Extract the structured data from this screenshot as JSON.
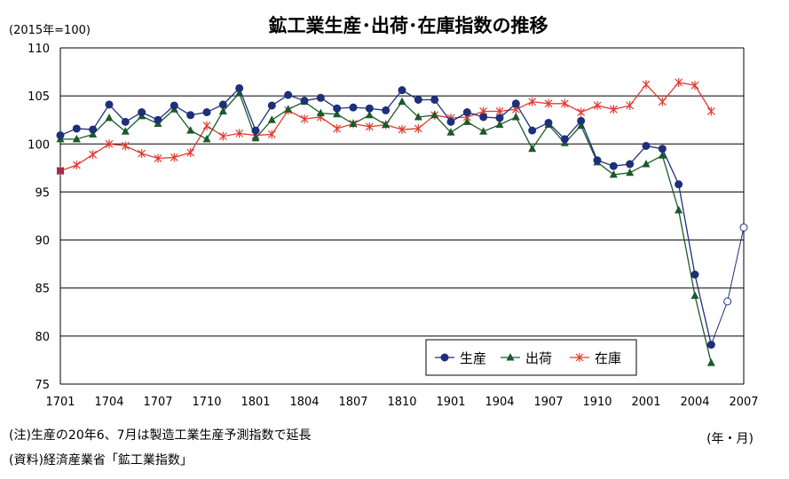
{
  "chart_data": {
    "type": "line",
    "title": "鉱工業生産･出荷･在庫指数の推移",
    "ylabel": "(2015年=100)",
    "xlabel": "(年・月)",
    "ylim": [
      75,
      110
    ],
    "yticks": [
      "75",
      "80",
      "85",
      "90",
      "95",
      "100",
      "105",
      "110"
    ],
    "xtick_labels": [
      "1701",
      "1704",
      "1707",
      "1710",
      "1801",
      "1804",
      "1807",
      "1810",
      "1901",
      "1904",
      "1907",
      "1910",
      "2001",
      "2004",
      "2007"
    ],
    "x": [
      "1701",
      "1702",
      "1703",
      "1704",
      "1705",
      "1706",
      "1707",
      "1708",
      "1709",
      "1710",
      "1711",
      "1712",
      "1801",
      "1802",
      "1803",
      "1804",
      "1805",
      "1806",
      "1807",
      "1808",
      "1809",
      "1810",
      "1811",
      "1812",
      "1901",
      "1902",
      "1903",
      "1904",
      "1905",
      "1906",
      "1907",
      "1908",
      "1909",
      "1910",
      "1911",
      "1912",
      "2001",
      "2002",
      "2003",
      "2004",
      "2005",
      "2006",
      "2007"
    ],
    "grid": true,
    "legend_position": "bottom-right",
    "series": [
      {
        "name": "生産",
        "color": "#1f2f7a",
        "marker": "circle",
        "values": [
          100.9,
          101.6,
          101.5,
          104.1,
          102.3,
          103.3,
          102.5,
          104.0,
          103.0,
          103.3,
          104.1,
          105.8,
          101.4,
          104.0,
          105.1,
          104.5,
          104.8,
          103.7,
          103.8,
          103.7,
          103.5,
          105.6,
          104.6,
          104.6,
          102.3,
          103.3,
          102.8,
          102.7,
          104.2,
          101.4,
          102.2,
          100.5,
          102.4,
          98.3,
          97.7,
          97.9,
          99.8,
          99.5,
          95.8,
          86.4,
          79.1,
          null,
          null
        ],
        "forecast_values": [
          null,
          null,
          null,
          null,
          null,
          null,
          null,
          null,
          null,
          null,
          null,
          null,
          null,
          null,
          null,
          null,
          null,
          null,
          null,
          null,
          null,
          null,
          null,
          null,
          null,
          null,
          null,
          null,
          null,
          null,
          null,
          null,
          null,
          null,
          null,
          null,
          null,
          null,
          null,
          null,
          79.1,
          83.6,
          91.3
        ]
      },
      {
        "name": "出荷",
        "color": "#1a5a2a",
        "marker": "triangle",
        "values": [
          100.5,
          100.5,
          101.0,
          102.7,
          101.3,
          102.9,
          102.1,
          103.6,
          101.4,
          100.5,
          103.4,
          105.3,
          100.6,
          102.5,
          103.6,
          104.4,
          103.2,
          103.1,
          102.1,
          103.0,
          102.0,
          104.4,
          102.8,
          103.0,
          101.2,
          102.3,
          101.3,
          102.0,
          102.8,
          99.5,
          102.0,
          100.1,
          101.9,
          98.1,
          96.8,
          97.0,
          97.9,
          98.8,
          93.1,
          84.2,
          77.2,
          null,
          null
        ]
      },
      {
        "name": "在庫",
        "color": "#e03c31",
        "marker": "asterisk",
        "values": [
          97.2,
          97.8,
          98.9,
          100.0,
          99.8,
          99.0,
          98.5,
          98.6,
          99.1,
          101.9,
          100.8,
          101.1,
          100.9,
          101.0,
          103.5,
          102.6,
          102.8,
          101.6,
          102.1,
          101.8,
          102.0,
          101.5,
          101.6,
          103.0,
          102.7,
          102.8,
          103.4,
          103.4,
          103.6,
          104.4,
          104.2,
          104.2,
          103.3,
          104.0,
          103.6,
          104.0,
          106.2,
          104.4,
          106.4,
          106.1,
          103.4,
          null,
          null
        ]
      }
    ]
  },
  "notes": {
    "note": "(注)生産の20年6、7月は製造工業生産予測指数で延長",
    "source": "(資料)経済産業省「鉱工業指数」"
  }
}
